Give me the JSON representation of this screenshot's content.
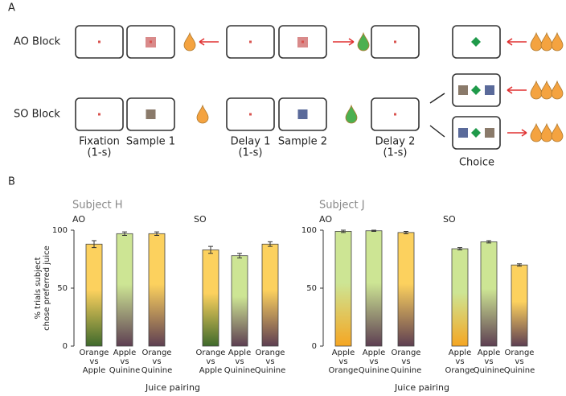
{
  "panel_a": {
    "label": "A",
    "rows": [
      "AO Block",
      "SO Block"
    ],
    "stages": [
      {
        "name": "Fixation",
        "duration": "(1-s)"
      },
      {
        "name": "Sample 1"
      },
      {
        "name": "Delay 1",
        "duration": "(1-s)"
      },
      {
        "name": "Sample 2"
      },
      {
        "name": "Delay 2",
        "duration": "(1-s)"
      }
    ],
    "choice": "Choice"
  },
  "panel_b": {
    "label": "B"
  },
  "chart_data": [
    {
      "type": "bar",
      "title": "Subject H",
      "group_labels": [
        "AO",
        "SO"
      ],
      "ylabel": [
        "% trials subject",
        "chose preferred juice"
      ],
      "xlabel": "Juice pairing",
      "categories": [
        [
          "Orange",
          "vs",
          "Apple"
        ],
        [
          "Apple",
          "vs",
          "Quinine"
        ],
        [
          "Orange",
          "vs",
          "Quinine"
        ],
        [
          "Orange",
          "vs",
          "Apple"
        ],
        [
          "Apple",
          "vs",
          "Quinine"
        ],
        [
          "Orange",
          "vs",
          "Quinine"
        ]
      ],
      "values": [
        88,
        97,
        97,
        83,
        78,
        88
      ],
      "errors": [
        3,
        1.5,
        1.5,
        3,
        2,
        2
      ],
      "bar_colors": [
        [
          "#fcd15e",
          "#3f6a2c"
        ],
        [
          "#cde594",
          "#5e3f52"
        ],
        [
          "#fcd15e",
          "#5e3f52"
        ],
        [
          "#fcd15e",
          "#3f6a2c"
        ],
        [
          "#cde594",
          "#5e3f52"
        ],
        [
          "#fcd15e",
          "#5e3f52"
        ]
      ],
      "ylim": [
        0,
        100
      ],
      "yticks": [
        0,
        50,
        100
      ]
    },
    {
      "type": "bar",
      "title": "Subject J",
      "group_labels": [
        "AO",
        "SO"
      ],
      "xlabel": "Juice pairing",
      "categories": [
        [
          "Apple",
          "vs",
          "Orange"
        ],
        [
          "Apple",
          "vs",
          "Quinine"
        ],
        [
          "Orange",
          "vs",
          "Quinine"
        ],
        [
          "Apple",
          "vs",
          "Orange"
        ],
        [
          "Apple",
          "vs",
          "Quinine"
        ],
        [
          "Orange",
          "vs",
          "Quinine"
        ]
      ],
      "values": [
        99,
        99.5,
        98,
        84,
        90,
        70
      ],
      "errors": [
        1,
        0.5,
        1,
        1,
        1,
        1
      ],
      "bar_colors": [
        [
          "#cde594",
          "#f5a623"
        ],
        [
          "#cde594",
          "#5e3f52"
        ],
        [
          "#fcd15e",
          "#5e3f52"
        ],
        [
          "#cde594",
          "#f5a623"
        ],
        [
          "#cde594",
          "#5e3f52"
        ],
        [
          "#fcd15e",
          "#5e3f52"
        ]
      ],
      "ylim": [
        0,
        100
      ],
      "yticks": [
        0,
        50,
        100
      ]
    }
  ]
}
